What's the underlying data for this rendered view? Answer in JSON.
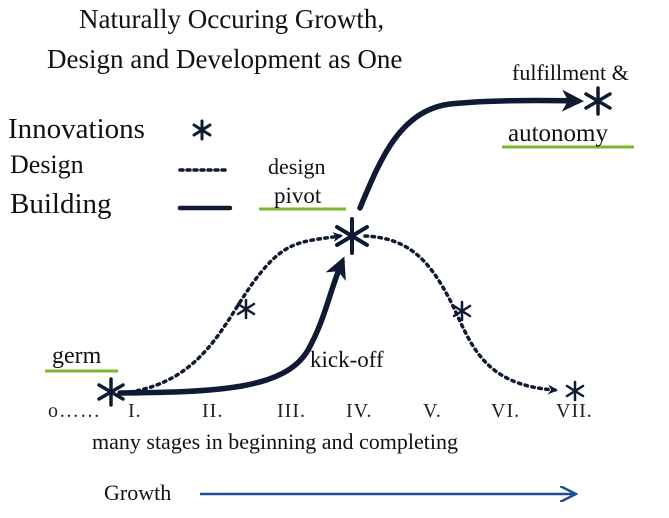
{
  "title": {
    "line1": "Naturally Occuring Growth,",
    "line2": "Design and Development as One"
  },
  "legend": {
    "innovations": "Innovations",
    "design": "Design",
    "building": "Building"
  },
  "labels": {
    "fulfillment": "fulfillment &",
    "autonomy": "autonomy",
    "design_pivot_line1": "design",
    "design_pivot_line2": "pivot",
    "germ": "germ",
    "kick_off": "kick-off",
    "stages_caption": "many stages in beginning and completing",
    "growth": "Growth"
  },
  "stages": [
    "o……",
    "I.",
    "II.",
    "III.",
    "IV.",
    "V.",
    "VI.",
    "VII."
  ],
  "colors": {
    "ink": "#0f1a33",
    "underline": "#7cb82f",
    "growth_arrow": "#1f4f9a"
  },
  "icons": {
    "innovation": "asterisk-icon",
    "growth": "arrow-right-icon"
  }
}
